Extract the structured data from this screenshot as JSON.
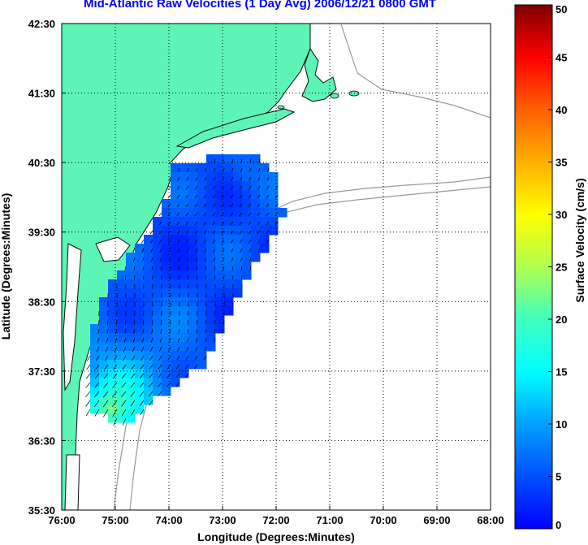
{
  "title": "Mid-Atlantic Raw Velocities (1 Day Avg) 2006/12/21 0800 GMT",
  "colors": {
    "land": "#5cf5b5",
    "coast": "#0a0a0a",
    "bathymetry": "#9a9a9a",
    "grid": "#000000",
    "title": "#0000ff"
  },
  "chart_data": {
    "type": "heatmap",
    "xlabel": "Longitude (Degrees:Minutes)",
    "ylabel": "Latitude (Degrees:Minutes)",
    "xlim": [
      -76,
      -68
    ],
    "ylim": [
      35.5,
      42.5
    ],
    "x_ticks": [
      "76:00",
      "75:00",
      "74:00",
      "73:00",
      "72:00",
      "71:00",
      "70:00",
      "69:00",
      "68:00"
    ],
    "y_ticks": [
      "35:30",
      "36:30",
      "37:30",
      "38:30",
      "39:30",
      "40:30",
      "41:30",
      "42:30"
    ],
    "grid": true,
    "colorbar": {
      "label": "Surface Velocity (cm/s)",
      "min": 0,
      "max": 50,
      "ticks": [
        "0",
        "5",
        "10",
        "15",
        "20",
        "25",
        "30",
        "35",
        "40",
        "45",
        "50"
      ]
    },
    "current_field": {
      "dominant_flow": "southwest, parallel to coast",
      "speed_range_cm_s": [
        3,
        24
      ],
      "max_speed_region": "off Virginia near 36:45 N, 75:00 W"
    }
  }
}
